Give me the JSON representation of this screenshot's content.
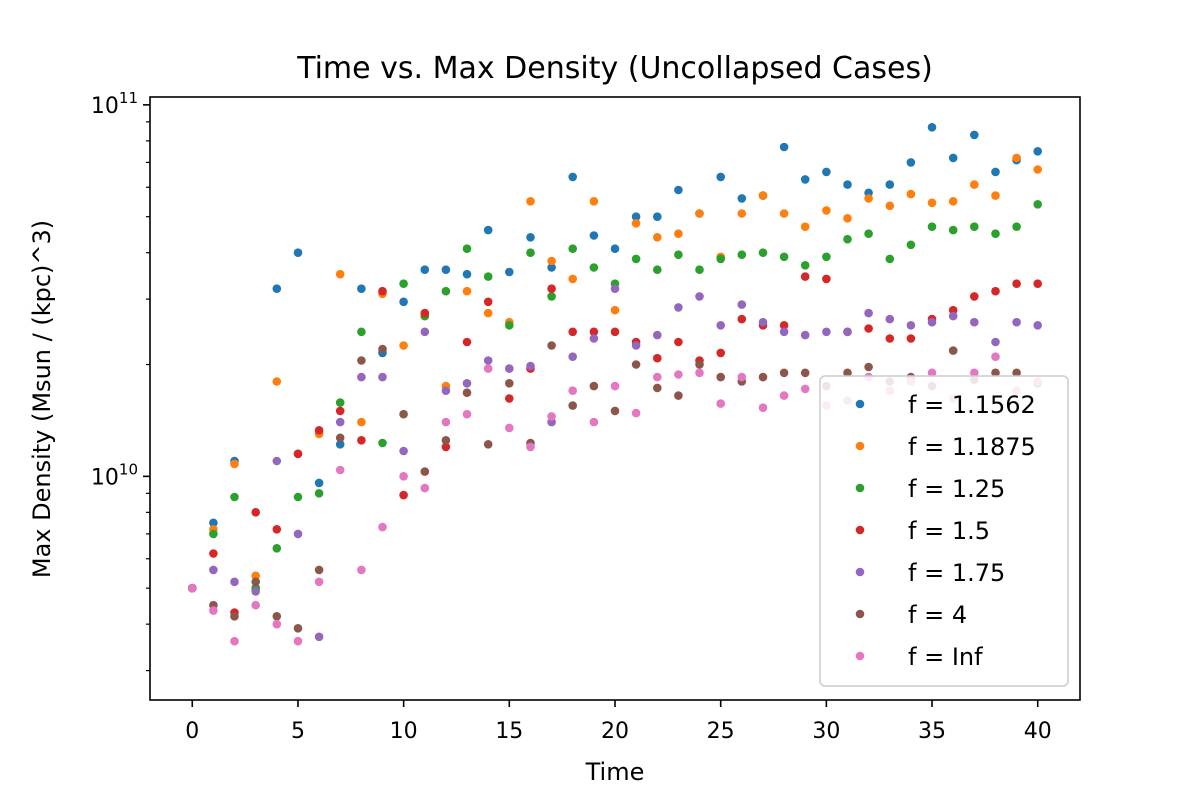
{
  "chart_data": {
    "type": "scatter",
    "title": "Time vs. Max Density (Uncollapsed Cases)",
    "xlabel": "Time",
    "ylabel": "Max Density (Msun / (kpc)^3)",
    "xlim": [
      -2,
      42
    ],
    "ylim": [
      2500000000.0,
      105000000000.0
    ],
    "yscale": "log",
    "xticks": [
      0,
      5,
      10,
      15,
      20,
      25,
      30,
      35,
      40
    ],
    "yticks": [
      {
        "value": 10000000000.0,
        "base": "10",
        "exp": "10"
      },
      {
        "value": 100000000000.0,
        "base": "10",
        "exp": "11"
      }
    ],
    "grid": false,
    "legend_position": "lower right",
    "series": [
      {
        "name": "f = 1.1562",
        "color": "#1f77b4",
        "x": [
          0,
          1,
          2,
          3,
          4,
          5,
          6,
          7,
          8,
          9,
          10,
          11,
          12,
          13,
          14,
          15,
          16,
          17,
          18,
          19,
          20,
          21,
          22,
          23,
          24,
          25,
          26,
          27,
          28,
          29,
          30,
          31,
          32,
          33,
          34,
          35,
          36,
          37,
          38,
          39,
          40
        ],
        "y": [
          5000000000.0,
          7500000000.0,
          11000000000.0,
          5000000000.0,
          32000000000.0,
          40000000000.0,
          9600000000.0,
          12200000000.0,
          32000000000.0,
          21500000000.0,
          29500000000.0,
          36000000000.0,
          36000000000.0,
          35000000000.0,
          46000000000.0,
          35500000000.0,
          44000000000.0,
          36500000000.0,
          64000000000.0,
          44500000000.0,
          41000000000.0,
          50000000000.0,
          50000000000.0,
          59000000000.0,
          51000000000.0,
          64000000000.0,
          56000000000.0,
          57000000000.0,
          77000000000.0,
          63000000000.0,
          66000000000.0,
          61000000000.0,
          58000000000.0,
          61000000000.0,
          70000000000.0,
          87000000000.0,
          72000000000.0,
          83000000000.0,
          66000000000.0,
          71000000000.0,
          75000000000.0
        ]
      },
      {
        "name": "f = 1.1875",
        "color": "#ff7f0e",
        "x": [
          0,
          1,
          2,
          3,
          4,
          5,
          6,
          7,
          8,
          9,
          10,
          11,
          12,
          13,
          14,
          15,
          16,
          17,
          18,
          19,
          20,
          21,
          22,
          23,
          24,
          25,
          26,
          27,
          28,
          29,
          30,
          31,
          32,
          33,
          34,
          35,
          36,
          37,
          38,
          39,
          40
        ],
        "y": [
          5000000000.0,
          7200000000.0,
          10800000000.0,
          5400000000.0,
          18000000000.0,
          11500000000.0,
          13000000000.0,
          35000000000.0,
          14000000000.0,
          31000000000.0,
          22500000000.0,
          27000000000.0,
          17500000000.0,
          31500000000.0,
          27500000000.0,
          26000000000.0,
          55000000000.0,
          38000000000.0,
          34000000000.0,
          55000000000.0,
          28000000000.0,
          48000000000.0,
          44000000000.0,
          45000000000.0,
          51000000000.0,
          39000000000.0,
          51000000000.0,
          57000000000.0,
          51000000000.0,
          47000000000.0,
          52000000000.0,
          49500000000.0,
          56000000000.0,
          53500000000.0,
          57500000000.0,
          54500000000.0,
          55000000000.0,
          61000000000.0,
          57000000000.0,
          72000000000.0,
          67000000000.0
        ]
      },
      {
        "name": "f = 1.25",
        "color": "#2ca02c",
        "x": [
          0,
          1,
          2,
          3,
          4,
          5,
          6,
          7,
          8,
          9,
          10,
          11,
          12,
          13,
          14,
          15,
          16,
          17,
          18,
          19,
          20,
          21,
          22,
          23,
          24,
          25,
          26,
          27,
          28,
          29,
          30,
          31,
          32,
          33,
          34,
          35,
          36,
          37,
          38,
          39,
          40
        ],
        "y": [
          5000000000.0,
          7000000000.0,
          8800000000.0,
          5000000000.0,
          6400000000.0,
          8800000000.0,
          9000000000.0,
          15800000000.0,
          24500000000.0,
          12300000000.0,
          33000000000.0,
          27000000000.0,
          31500000000.0,
          41000000000.0,
          34500000000.0,
          25500000000.0,
          40000000000.0,
          30500000000.0,
          41000000000.0,
          36500000000.0,
          33000000000.0,
          38500000000.0,
          36000000000.0,
          39500000000.0,
          36000000000.0,
          38500000000.0,
          39500000000.0,
          40000000000.0,
          39000000000.0,
          37000000000.0,
          39000000000.0,
          43500000000.0,
          45000000000.0,
          38500000000.0,
          42000000000.0,
          47000000000.0,
          46000000000.0,
          47000000000.0,
          45000000000.0,
          47000000000.0,
          54000000000.0
        ]
      },
      {
        "name": "f = 1.5",
        "color": "#d62728",
        "x": [
          0,
          1,
          2,
          3,
          4,
          5,
          6,
          7,
          8,
          9,
          10,
          11,
          12,
          13,
          14,
          15,
          16,
          17,
          18,
          19,
          20,
          21,
          22,
          23,
          24,
          25,
          26,
          27,
          28,
          29,
          30,
          31,
          32,
          33,
          34,
          35,
          36,
          37,
          38,
          39,
          40
        ],
        "y": [
          5000000000.0,
          6200000000.0,
          4300000000.0,
          8000000000.0,
          7200000000.0,
          11500000000.0,
          13300000000.0,
          15000000000.0,
          12500000000.0,
          31500000000.0,
          8900000000.0,
          27500000000.0,
          12000000000.0,
          23000000000.0,
          29500000000.0,
          16200000000.0,
          19500000000.0,
          32000000000.0,
          24500000000.0,
          24500000000.0,
          24500000000.0,
          23000000000.0,
          20800000000.0,
          23000000000.0,
          20500000000.0,
          21500000000.0,
          26500000000.0,
          25500000000.0,
          25500000000.0,
          34500000000.0,
          34000000000.0,
          24500000000.0,
          25000000000.0,
          23500000000.0,
          23500000000.0,
          26500000000.0,
          28000000000.0,
          30500000000.0,
          31500000000.0,
          33000000000.0,
          33000000000.0
        ]
      },
      {
        "name": "f = 1.75",
        "color": "#9467bd",
        "x": [
          0,
          1,
          2,
          3,
          4,
          5,
          6,
          7,
          8,
          9,
          10,
          11,
          12,
          13,
          14,
          15,
          16,
          17,
          18,
          19,
          20,
          21,
          22,
          23,
          24,
          25,
          26,
          27,
          28,
          29,
          30,
          31,
          32,
          33,
          34,
          35,
          36,
          37,
          38,
          39,
          40
        ],
        "y": [
          5000000000.0,
          5600000000.0,
          5200000000.0,
          4900000000.0,
          11000000000.0,
          7000000000.0,
          3700000000.0,
          14000000000.0,
          18500000000.0,
          18500000000.0,
          11700000000.0,
          24500000000.0,
          17000000000.0,
          17800000000.0,
          20500000000.0,
          19500000000.0,
          19800000000.0,
          14000000000.0,
          21000000000.0,
          23500000000.0,
          32000000000.0,
          22500000000.0,
          24000000000.0,
          28500000000.0,
          30500000000.0,
          25500000000.0,
          29000000000.0,
          26000000000.0,
          24500000000.0,
          24000000000.0,
          24500000000.0,
          24500000000.0,
          27500000000.0,
          26500000000.0,
          25500000000.0,
          26000000000.0,
          27000000000.0,
          26000000000.0,
          23000000000.0,
          26000000000.0,
          25500000000.0
        ]
      },
      {
        "name": "f = 4",
        "color": "#8c564b",
        "x": [
          0,
          1,
          2,
          3,
          4,
          5,
          6,
          7,
          8,
          9,
          10,
          11,
          12,
          13,
          14,
          15,
          16,
          17,
          18,
          19,
          20,
          21,
          22,
          23,
          24,
          25,
          26,
          27,
          28,
          29,
          30,
          31,
          32,
          33,
          34,
          35,
          36,
          37,
          38,
          39,
          40
        ],
        "y": [
          5000000000.0,
          4500000000.0,
          4200000000.0,
          5200000000.0,
          4200000000.0,
          3900000000.0,
          5600000000.0,
          12700000000.0,
          20500000000.0,
          22000000000.0,
          14700000000.0,
          10300000000.0,
          12500000000.0,
          16800000000.0,
          12200000000.0,
          17800000000.0,
          12300000000.0,
          22500000000.0,
          15500000000.0,
          17500000000.0,
          15000000000.0,
          20000000000.0,
          17300000000.0,
          16500000000.0,
          20000000000.0,
          18500000000.0,
          18000000000.0,
          18500000000.0,
          19000000000.0,
          19000000000.0,
          17500000000.0,
          19000000000.0,
          19700000000.0,
          18000000000.0,
          18500000000.0,
          17500000000.0,
          21800000000.0,
          18200000000.0,
          19000000000.0,
          19000000000.0,
          17800000000.0
        ]
      },
      {
        "name": "f = Inf",
        "color": "#e377c2",
        "x": [
          0,
          1,
          2,
          3,
          4,
          5,
          6,
          7,
          8,
          9,
          10,
          11,
          12,
          13,
          14,
          15,
          16,
          17,
          18,
          19,
          20,
          21,
          22,
          23,
          24,
          25,
          26,
          27,
          28,
          29,
          30,
          31,
          32,
          33,
          34,
          35,
          36,
          37,
          38,
          39,
          40
        ],
        "y": [
          5000000000.0,
          4350000000.0,
          3600000000.0,
          4500000000.0,
          4000000000.0,
          3600000000.0,
          5200000000.0,
          10400000000.0,
          5600000000.0,
          7300000000.0,
          10000000000.0,
          9300000000.0,
          14000000000.0,
          14700000000.0,
          19500000000.0,
          13500000000.0,
          12000000000.0,
          14500000000.0,
          17000000000.0,
          14000000000.0,
          17500000000.0,
          14800000000.0,
          18500000000.0,
          18800000000.0,
          19000000000.0,
          15700000000.0,
          18500000000.0,
          15300000000.0,
          16500000000.0,
          17200000000.0,
          15500000000.0,
          16000000000.0,
          18500000000.0,
          17000000000.0,
          18000000000.0,
          19000000000.0,
          16200000000.0,
          19000000000.0,
          21000000000.0,
          17000000000.0,
          18000000000.0
        ]
      }
    ]
  }
}
